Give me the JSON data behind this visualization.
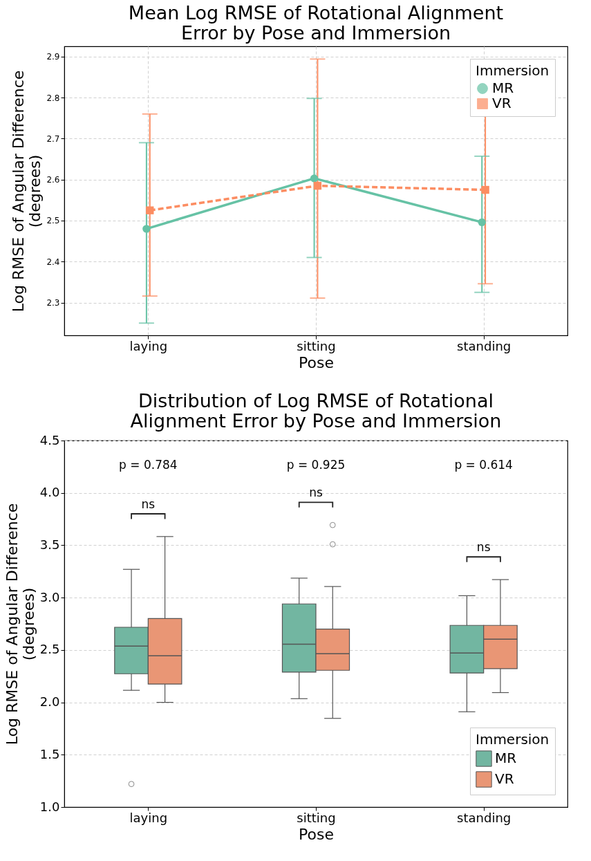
{
  "chart_data": [
    {
      "type": "line",
      "title": "Mean Log RMSE of Rotational Alignment Error by Pose and Immersion",
      "xlabel": "Pose",
      "ylabel": "Log RMSE of Angular Difference (degrees)",
      "legend_title": "Immersion",
      "legend": "top right",
      "grid": true,
      "categories": [
        "laying",
        "sitting",
        "standing"
      ],
      "ylim": [
        2.22,
        2.925
      ],
      "yticks": [
        2.3,
        2.4,
        2.5,
        2.6,
        2.7,
        2.8,
        2.9
      ],
      "series": [
        {
          "name": "MR",
          "color": "#66c2a5",
          "marker": "circle",
          "line_style": "solid",
          "values": [
            2.48,
            2.603,
            2.496
          ],
          "errors": [
            [
              2.25,
              2.69
            ],
            [
              2.41,
              2.798
            ],
            [
              2.325,
              2.657
            ]
          ]
        },
        {
          "name": "VR",
          "color": "#fc8d62",
          "marker": "square",
          "line_style": "dashed",
          "values": [
            2.525,
            2.585,
            2.575
          ],
          "errors": [
            [
              2.316,
              2.76
            ],
            [
              2.311,
              2.894
            ],
            [
              2.346,
              2.793
            ]
          ]
        }
      ]
    },
    {
      "type": "box",
      "title": "Distribution of Log RMSE of Rotational Alignment Error by Pose and Immersion",
      "xlabel": "Pose",
      "ylabel": "Log RMSE of Angular Difference (degrees)",
      "legend_title": "Immersion",
      "legend": "bottom right",
      "grid": "y",
      "categories": [
        "laying",
        "sitting",
        "standing"
      ],
      "ylim": [
        1.0,
        4.5
      ],
      "yticks": [
        {
          "value": 1.0,
          "label": "1.0"
        },
        {
          "value": 1.5,
          "label": "1.5"
        },
        {
          "value": 2.0,
          "label": "2.0"
        },
        {
          "value": 2.5,
          "label": "2.5"
        },
        {
          "value": 3.0,
          "label": "3.0"
        },
        {
          "value": 3.5,
          "label": "3.5"
        },
        {
          "value": 4.0,
          "label": "4.0"
        },
        {
          "value": 4.5,
          "label": "4.5"
        }
      ],
      "series": [
        {
          "name": "MR",
          "color": "#72b6a1",
          "boxes": [
            {
              "low": 2.115,
              "q1": 2.273,
              "median": 2.537,
              "q3": 2.717,
              "high": 3.27,
              "outliers": [
                1.22
              ]
            },
            {
              "low": 2.035,
              "q1": 2.288,
              "median": 2.555,
              "q3": 2.94,
              "high": 3.186
            },
            {
              "low": 1.91,
              "q1": 2.28,
              "median": 2.471,
              "q3": 2.735,
              "high": 3.018
            }
          ]
        },
        {
          "name": "VR",
          "color": "#e99675",
          "boxes": [
            {
              "low": 2.0,
              "q1": 2.174,
              "median": 2.445,
              "q3": 2.8,
              "high": 3.583
            },
            {
              "low": 1.847,
              "q1": 2.306,
              "median": 2.464,
              "q3": 2.7,
              "high": 3.106,
              "outliers": [
                3.509,
                3.693
              ]
            },
            {
              "low": 2.093,
              "q1": 2.321,
              "median": 2.603,
              "q3": 2.735,
              "high": 3.172
            }
          ]
        }
      ],
      "annotations": [
        "p = 0.784",
        "p = 0.925",
        "p = 0.614",
        "ns",
        "ns",
        "ns"
      ]
    }
  ]
}
